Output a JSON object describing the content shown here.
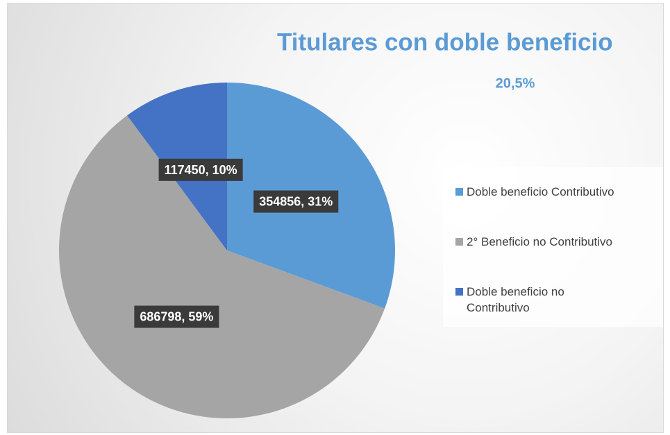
{
  "chart_data": {
    "type": "pie",
    "title": "Titulares con doble beneficio",
    "subtitle": "20,5%",
    "categories": [
      "Doble beneficio Contributivo",
      "2° Beneficio no Contributivo",
      "Doble beneficio no Contributivo"
    ],
    "values": [
      354856,
      686798,
      117450
    ],
    "value_labels": [
      "354856, 31%",
      "686798, 59%",
      "117450, 10%"
    ],
    "colors": [
      "#5b9bd5",
      "#a5a5a5",
      "#4472c4"
    ],
    "legend": "right"
  }
}
